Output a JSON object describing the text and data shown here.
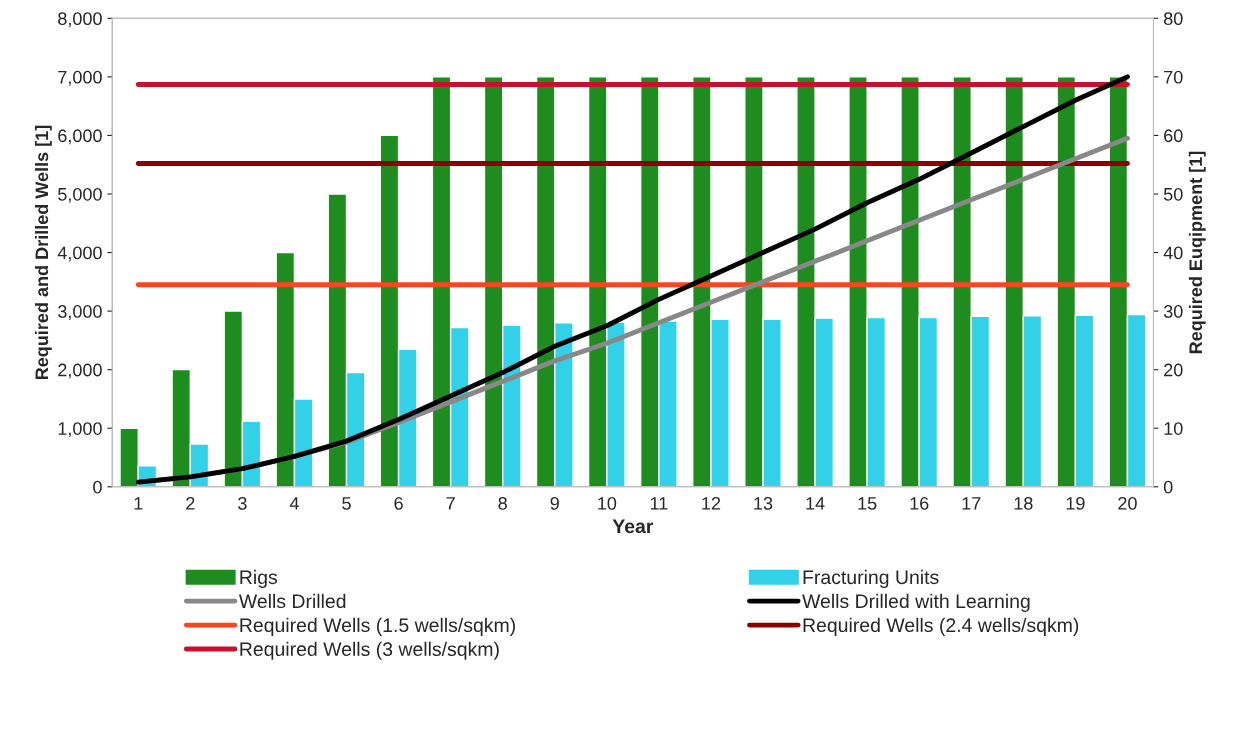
{
  "chart_data": {
    "type": "bar",
    "xlabel": "Year",
    "ylabel": "Required and Drilled Wells [1]",
    "y2label": "Required Euqipment [1]",
    "categories": [
      "1",
      "2",
      "3",
      "4",
      "5",
      "6",
      "7",
      "8",
      "9",
      "10",
      "11",
      "12",
      "13",
      "14",
      "15",
      "16",
      "17",
      "18",
      "19",
      "20"
    ],
    "series": [
      {
        "name": "Rigs",
        "axis": "y2",
        "color": "#1e8c1e",
        "values": [
          10,
          20,
          30,
          40,
          50,
          60,
          70,
          70,
          70,
          70,
          70,
          70,
          70,
          70,
          70,
          70,
          70,
          70,
          70,
          70
        ]
      },
      {
        "name": "Fracturing Units",
        "axis": "y2",
        "color": "#33d1e8",
        "values": [
          3.6,
          7.3,
          11.2,
          15,
          19.5,
          23.5,
          27.2,
          27.6,
          28,
          28.1,
          28.3,
          28.6,
          28.6,
          28.8,
          28.9,
          28.9,
          29.1,
          29.2,
          29.3,
          29.4
        ]
      },
      {
        "name": "Wells Drilled",
        "type": "line",
        "color": "#888888",
        "values": [
          80,
          170,
          310,
          520,
          760,
          1100,
          1450,
          1800,
          2150,
          2450,
          2800,
          3150,
          3500,
          3850,
          4200,
          4550,
          4900,
          5250,
          5600,
          5950
        ]
      },
      {
        "name": "Wells Drilled with Learning",
        "type": "line",
        "color": "#000000",
        "values": [
          80,
          170,
          310,
          520,
          780,
          1150,
          1550,
          1950,
          2400,
          2750,
          3200,
          3600,
          4000,
          4400,
          4850,
          5250,
          5700,
          6150,
          6600,
          7000
        ]
      }
    ],
    "ref_lines": [
      {
        "axis": "y",
        "value": 3450,
        "label": "Required Wells (1.5 wells/sqkm)",
        "color": "#ff4422"
      },
      {
        "axis": "y",
        "value": 5520,
        "label": "Required Wells (2.4 wells/sqkm)",
        "color": "#8b0000"
      },
      {
        "axis": "y",
        "value": 6870,
        "label": "Required Wells (3 wells/sqkm)",
        "color": "#c8102e"
      }
    ],
    "ylim": [
      0,
      8000
    ],
    "yticks": [
      0,
      {
        "value": 1000,
        "label": "1,000"
      },
      {
        "value": 2000,
        "label": "2,000"
      },
      {
        "value": 3000,
        "label": "3,000"
      },
      {
        "value": 4000,
        "label": "4,000"
      },
      {
        "value": 5000,
        "label": "5,000"
      },
      {
        "value": 6000,
        "label": "6,000"
      },
      {
        "value": 7000,
        "label": "7,000"
      },
      {
        "value": 8000,
        "label": "8,000"
      }
    ],
    "y2lim": [
      0,
      80
    ],
    "y2ticks": [
      0,
      10,
      20,
      30,
      40,
      50,
      60,
      70,
      80
    ],
    "grid": false,
    "legend": "bottom"
  }
}
